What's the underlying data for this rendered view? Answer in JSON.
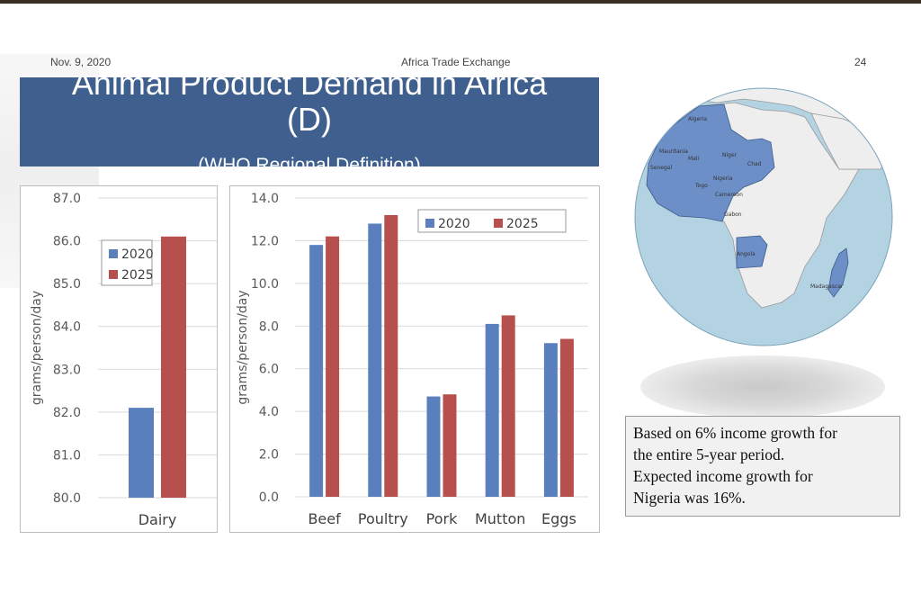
{
  "header": {
    "date": "Nov. 9, 2020",
    "center": "Africa Trade Exchange",
    "page_number": "24"
  },
  "title": {
    "line1": "Animal Product Demand in Africa",
    "line2": "(D)",
    "subtitle": "(WHO Regional Definition)"
  },
  "colors": {
    "series_2020": "#5a7fbd",
    "series_2025": "#b7504c",
    "title_bg": "#3f5f8e",
    "map_water": "#b3d3e3",
    "map_land": "#eeeeee",
    "map_highlight": "#6d8fc7"
  },
  "chart_data": [
    {
      "type": "bar",
      "categories": [
        "Dairy"
      ],
      "series": [
        {
          "name": "2020",
          "values": [
            82.1
          ]
        },
        {
          "name": "2025",
          "values": [
            86.1
          ]
        }
      ],
      "ylabel": "grams/person/day",
      "ylim": [
        80.0,
        87.0
      ],
      "yticks": [
        "80.0",
        "81.0",
        "82.0",
        "83.0",
        "84.0",
        "85.0",
        "86.0",
        "87.0"
      ],
      "grid": true,
      "legend": "left"
    },
    {
      "type": "bar",
      "categories": [
        "Beef",
        "Poultry",
        "Pork",
        "Mutton",
        "Eggs"
      ],
      "series": [
        {
          "name": "2020",
          "values": [
            11.8,
            12.8,
            4.7,
            8.1,
            7.2
          ]
        },
        {
          "name": "2025",
          "values": [
            12.2,
            13.2,
            4.8,
            8.5,
            7.4
          ]
        }
      ],
      "ylabel": "grams/person/day",
      "ylim": [
        0.0,
        14.0
      ],
      "yticks": [
        "0.0",
        "2.0",
        "4.0",
        "6.0",
        "8.0",
        "10.0",
        "12.0",
        "14.0"
      ],
      "grid": true,
      "legend": "top-right"
    }
  ],
  "map": {
    "countries": [
      {
        "label": "Algeria",
        "highlight": true
      },
      {
        "label": "Mauritania",
        "highlight": true
      },
      {
        "label": "Mali",
        "highlight": true
      },
      {
        "label": "Niger",
        "highlight": true
      },
      {
        "label": "Chad",
        "highlight": true
      },
      {
        "label": "Senegal",
        "highlight": true
      },
      {
        "label": "Nigeria",
        "highlight": true
      },
      {
        "label": "Cameroon",
        "highlight": true
      },
      {
        "label": "Togo",
        "highlight": true
      },
      {
        "label": "Gabon",
        "highlight": true
      },
      {
        "label": "Angola",
        "highlight": true
      },
      {
        "label": "Madagascar",
        "highlight": true
      }
    ]
  },
  "note": {
    "lines": [
      "Based on 6% income growth for",
      "the entire 5-year period.",
      "Expected income growth for",
      "Nigeria was 16%."
    ]
  }
}
